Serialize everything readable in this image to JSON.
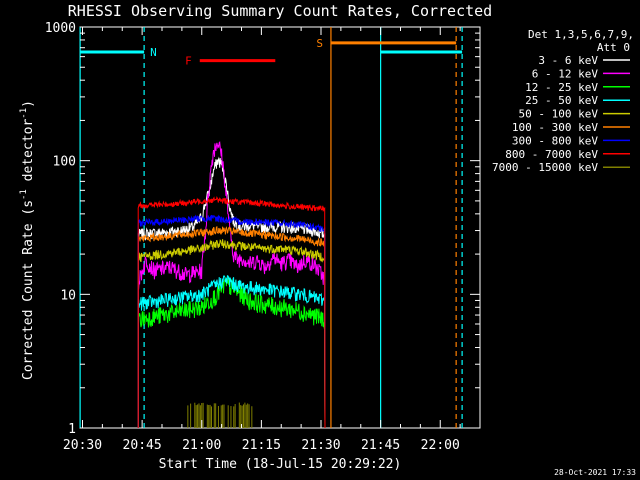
{
  "chart_data": {
    "type": "line",
    "title": "RHESSI Observing Summary Count Rates, Corrected",
    "xlabel": "Start Time (18-Jul-15 20:29:22)",
    "ylabel": "Corrected Count Rate (s⁻¹ detector⁻¹)",
    "ylabel_main": "Corrected Count Rate (s",
    "ylabel_exp1": "-1",
    "ylabel_mid": " detector",
    "ylabel_exp2": "-1",
    "ylabel_end": ")",
    "y_scale": "log",
    "ylim": [
      1,
      1000
    ],
    "xlim": [
      "20:29:22",
      "22:10:00"
    ],
    "x_ticks": [
      "20:30",
      "20:45",
      "21:00",
      "21:15",
      "21:30",
      "21:45",
      "22:00"
    ],
    "x_tick_values": [
      30,
      45,
      60,
      75,
      90,
      105,
      120
    ],
    "y_ticks": [
      "1",
      "10",
      "100",
      "1000"
    ],
    "y_tick_values": [
      1,
      10,
      100,
      1000
    ],
    "legend_header": [
      "Det 1,3,5,6,7,9,",
      "Att 0"
    ],
    "legend_placement": "right",
    "data_window": [
      44,
      91
    ],
    "series": [
      {
        "name": "3 - 6 keV",
        "color": "#ffffff",
        "level": 28,
        "x": [
          44,
          50,
          55,
          58,
          60,
          62,
          63,
          64,
          65,
          66,
          67,
          68,
          70,
          72,
          75,
          80,
          85,
          88,
          91
        ],
        "values": [
          28,
          29,
          30,
          32,
          38,
          60,
          85,
          100,
          95,
          70,
          45,
          35,
          32,
          33,
          32,
          32,
          31,
          30,
          28
        ]
      },
      {
        "name": "6 - 12 keV",
        "color": "#ff00ff",
        "level": 15,
        "x": [
          44,
          46,
          48,
          52,
          56,
          60,
          61,
          62,
          63,
          64,
          65,
          66,
          67,
          68,
          69,
          70,
          72,
          74,
          76,
          78,
          80,
          82,
          84,
          86,
          88,
          91
        ],
        "values": [
          12,
          18,
          15,
          16,
          14,
          15,
          30,
          70,
          120,
          140,
          110,
          60,
          30,
          20,
          18,
          19,
          17,
          18,
          16,
          19,
          17,
          18,
          16,
          18,
          17,
          13
        ]
      },
      {
        "name": "12 - 25 keV",
        "color": "#00ff00",
        "level": 7,
        "x": [
          44,
          50,
          55,
          60,
          64,
          66,
          68,
          70,
          72,
          75,
          80,
          85,
          88,
          91
        ],
        "values": [
          6.5,
          7,
          7.5,
          8,
          10,
          12,
          11,
          10,
          9,
          8.5,
          8,
          7.5,
          7,
          6.5
        ]
      },
      {
        "name": "25 - 50 keV",
        "color": "#00ffff",
        "level": 10,
        "x": [
          44,
          50,
          55,
          60,
          64,
          66,
          68,
          70,
          75,
          80,
          85,
          88,
          91
        ],
        "values": [
          8.5,
          9,
          9.5,
          10,
          12,
          13,
          12,
          11.5,
          11,
          10.5,
          10,
          9.5,
          9
        ]
      },
      {
        "name": "50 - 100 keV",
        "color": "#cccc00",
        "level": 20,
        "x": [
          44,
          50,
          55,
          60,
          64,
          66,
          70,
          75,
          80,
          85,
          88,
          91
        ],
        "values": [
          19,
          20,
          21,
          22,
          24,
          24,
          23,
          22,
          22,
          21,
          20,
          19
        ]
      },
      {
        "name": "100 - 300 keV",
        "color": "#ff8000",
        "level": 28,
        "x": [
          44,
          50,
          55,
          60,
          64,
          66,
          70,
          75,
          80,
          85,
          88,
          91
        ],
        "values": [
          26,
          27,
          28,
          29,
          30,
          30,
          29,
          28,
          27,
          26,
          25,
          24
        ]
      },
      {
        "name": "300 - 800 keV",
        "color": "#0000ff",
        "level": 35,
        "x": [
          44,
          50,
          55,
          60,
          64,
          66,
          70,
          75,
          80,
          85,
          88,
          91
        ],
        "values": [
          34,
          35,
          36,
          37,
          37,
          36,
          35,
          35,
          34,
          33,
          32,
          30
        ]
      },
      {
        "name": "800 - 7000 keV",
        "color": "#ff0000",
        "level": 45,
        "x": [
          44,
          50,
          55,
          60,
          64,
          66,
          70,
          75,
          80,
          85,
          88,
          91
        ],
        "values": [
          46,
          47,
          48,
          50,
          51,
          50,
          49,
          48,
          46,
          45,
          44,
          44
        ]
      },
      {
        "name": "7000 - 15000 keV",
        "color": "#808000",
        "level": 1,
        "x": [
          44,
          91
        ],
        "values": [
          1,
          1
        ]
      }
    ],
    "annotations": [
      {
        "label": "N",
        "x_start": 29.4,
        "x_end": 45.5,
        "color": "#00ffff",
        "level": 650
      },
      {
        "label": "F",
        "x_start": 59.5,
        "x_end": 78.5,
        "color": "#ff0000",
        "level": 560
      },
      {
        "label": "S",
        "x_start": 92.5,
        "x_end": 124,
        "color": "#ff8000",
        "level": 760
      },
      {
        "label": "",
        "x_start": 105,
        "x_end": 125.5,
        "color": "#00ffff",
        "level": 650
      }
    ],
    "vlines": [
      {
        "x": 29.4,
        "color": "#00ffff",
        "style": "solid"
      },
      {
        "x": 45.5,
        "color": "#00ffff",
        "style": "dashed"
      },
      {
        "x": 92.5,
        "color": "#ff8000",
        "style": "solid"
      },
      {
        "x": 105,
        "color": "#00ffff",
        "style": "solid"
      },
      {
        "x": 124,
        "color": "#ff8000",
        "style": "dashed"
      },
      {
        "x": 125.5,
        "color": "#00ffff",
        "style": "dashed"
      }
    ],
    "timestamp": "28-Oct-2021 17:33"
  }
}
